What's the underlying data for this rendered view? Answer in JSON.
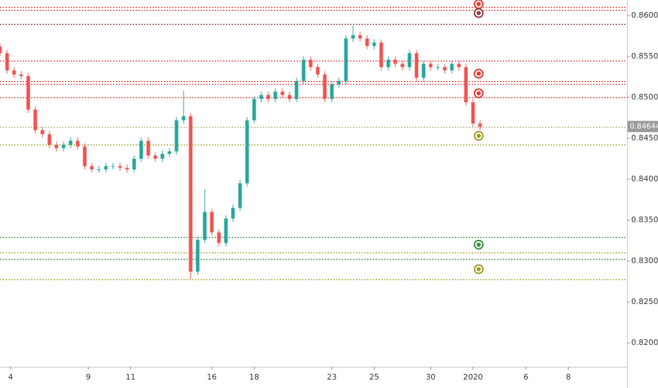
{
  "chart_data": {
    "type": "candlestick",
    "up_color": "#26a69a",
    "down_color": "#ef5350",
    "x": [
      -3,
      -1,
      1,
      3,
      5,
      7,
      9,
      11,
      13,
      15,
      17,
      19,
      21,
      23,
      25,
      27,
      29,
      31,
      33,
      35,
      37,
      39,
      41,
      43,
      45,
      47,
      49,
      51,
      53,
      55,
      57,
      59,
      61,
      63,
      65,
      67,
      69,
      71,
      73,
      75,
      77,
      79,
      81,
      83,
      85,
      87,
      89,
      91,
      93,
      95,
      97,
      99,
      101,
      103,
      105,
      107,
      109,
      111,
      113,
      115,
      117,
      119,
      121,
      123,
      125,
      127,
      129,
      131,
      133
    ],
    "open": [
      0.8562,
      0.8554,
      0.8533,
      0.8528,
      0.8526,
      0.8485,
      0.846,
      0.8455,
      0.8442,
      0.8438,
      0.8442,
      0.8447,
      0.844,
      0.8416,
      0.8412,
      0.8412,
      0.8416,
      0.8416,
      0.8414,
      0.8412,
      0.8425,
      0.8447,
      0.8429,
      0.8425,
      0.8431,
      0.8434,
      0.8472,
      0.8477,
      0.8287,
      0.8326,
      0.836,
      0.8335,
      0.8322,
      0.8352,
      0.8365,
      0.8395,
      0.8472,
      0.8498,
      0.8503,
      0.8498,
      0.8507,
      0.8503,
      0.8498,
      0.852,
      0.8546,
      0.8537,
      0.8528,
      0.8498,
      0.8516,
      0.852,
      0.8572,
      0.8576,
      0.8572,
      0.8563,
      0.8567,
      0.8537,
      0.8546,
      0.8541,
      0.8537,
      0.8554,
      0.8524,
      0.8541,
      0.8537,
      0.8537,
      0.8533,
      0.8541,
      0.8537,
      0.8494,
      0.8468
    ],
    "high": [
      0.8566,
      0.8558,
      0.8537,
      0.8532,
      0.853,
      0.8489,
      0.8464,
      0.8459,
      0.8446,
      0.8446,
      0.8451,
      0.8451,
      0.8444,
      0.842,
      0.8416,
      0.842,
      0.842,
      0.842,
      0.8418,
      0.8429,
      0.8451,
      0.8451,
      0.8433,
      0.8435,
      0.8438,
      0.8476,
      0.8508,
      0.8481,
      0.833,
      0.8388,
      0.8364,
      0.8339,
      0.8356,
      0.8369,
      0.8399,
      0.8476,
      0.8502,
      0.8507,
      0.8507,
      0.8511,
      0.8511,
      0.8507,
      0.8524,
      0.855,
      0.855,
      0.8541,
      0.8532,
      0.852,
      0.8524,
      0.8576,
      0.8588,
      0.858,
      0.8576,
      0.8571,
      0.8571,
      0.855,
      0.855,
      0.8545,
      0.8558,
      0.8558,
      0.8545,
      0.8545,
      0.8541,
      0.8541,
      0.8545,
      0.8545,
      0.8541,
      0.8498,
      0.8472
    ],
    "low": [
      0.855,
      0.8529,
      0.8524,
      0.8522,
      0.8481,
      0.8456,
      0.8451,
      0.8438,
      0.8434,
      0.8434,
      0.8438,
      0.8436,
      0.8412,
      0.8408,
      0.8408,
      0.8408,
      0.8412,
      0.841,
      0.8408,
      0.8408,
      0.8421,
      0.8425,
      0.8421,
      0.8421,
      0.8427,
      0.843,
      0.8468,
      0.8278,
      0.8283,
      0.8322,
      0.8331,
      0.8318,
      0.8318,
      0.8348,
      0.8361,
      0.8391,
      0.8468,
      0.8494,
      0.8494,
      0.8494,
      0.8499,
      0.8494,
      0.8494,
      0.8516,
      0.8533,
      0.8524,
      0.8494,
      0.8494,
      0.8512,
      0.8516,
      0.8568,
      0.8568,
      0.8559,
      0.8559,
      0.8533,
      0.8533,
      0.8537,
      0.8533,
      0.8533,
      0.852,
      0.852,
      0.8533,
      0.8533,
      0.8529,
      0.8529,
      0.8533,
      0.849,
      0.8464,
      0.846
    ],
    "close": [
      0.8554,
      0.8533,
      0.8528,
      0.8526,
      0.8485,
      0.846,
      0.8455,
      0.8442,
      0.8438,
      0.8442,
      0.8447,
      0.844,
      0.8416,
      0.8412,
      0.8412,
      0.8416,
      0.8416,
      0.8414,
      0.8412,
      0.8425,
      0.8447,
      0.8429,
      0.8425,
      0.8431,
      0.8434,
      0.8472,
      0.8477,
      0.8287,
      0.8326,
      0.836,
      0.8335,
      0.8322,
      0.8352,
      0.8365,
      0.8395,
      0.8472,
      0.8498,
      0.8503,
      0.8498,
      0.8507,
      0.8503,
      0.8498,
      0.852,
      0.8546,
      0.8537,
      0.8528,
      0.8498,
      0.8516,
      0.852,
      0.8572,
      0.8576,
      0.8572,
      0.8563,
      0.8567,
      0.8537,
      0.8546,
      0.8541,
      0.8537,
      0.8554,
      0.8524,
      0.8541,
      0.8537,
      0.8537,
      0.8533,
      0.8541,
      0.8537,
      0.8494,
      0.8468,
      0.8464
    ],
    "levels": [
      {
        "price": 0.861,
        "color": "#e53935"
      },
      {
        "price": 0.8607,
        "color": "#e53935"
      },
      {
        "price": 0.859,
        "color": "#8e2c2c"
      },
      {
        "price": 0.8545,
        "color": "#e53935"
      },
      {
        "price": 0.852,
        "color": "#e53935"
      },
      {
        "price": 0.8516,
        "color": "#e53935"
      },
      {
        "price": 0.85,
        "color": "#e53935"
      },
      {
        "price": 0.8464,
        "color": "#b0b07a"
      },
      {
        "price": 0.8442,
        "color": "#9e9d24"
      },
      {
        "price": 0.8329,
        "color": "#388e3c"
      },
      {
        "price": 0.831,
        "color": "#9e9d24"
      },
      {
        "price": 0.8303,
        "color": "#388e3c"
      },
      {
        "price": 0.8278,
        "color": "#9e9d24"
      }
    ],
    "markers": {
      "x": 132.6,
      "prices": [
        0.8614,
        0.8603,
        0.8529,
        0.8505,
        0.8453,
        0.832,
        0.829
      ],
      "colors": [
        "#e53935",
        "#8e3c3c",
        "#e53935",
        "#e53935",
        "#9e9d24",
        "#388e3c",
        "#9e9d24"
      ]
    },
    "last_price": {
      "value": 0.84644,
      "label": "0.84644",
      "color": "#9a9a9a"
    },
    "xlim": [
      -3,
      174.6
    ],
    "ylim": [
      0.81707,
      0.8619
    ],
    "xticks": [
      {
        "value": 0,
        "label": "4"
      },
      {
        "value": 22,
        "label": "9"
      },
      {
        "value": 34,
        "label": "11"
      },
      {
        "value": 57,
        "label": "16"
      },
      {
        "value": 69,
        "label": "18"
      },
      {
        "value": 91,
        "label": "23"
      },
      {
        "value": 103,
        "label": "25"
      },
      {
        "value": 119,
        "label": "30"
      },
      {
        "value": 131,
        "label": "2020"
      },
      {
        "value": 146,
        "label": "6"
      },
      {
        "value": 158,
        "label": "8"
      }
    ],
    "yticks": [
      {
        "value": 0.82,
        "label": "0.82000"
      },
      {
        "value": 0.825,
        "label": "0.82500"
      },
      {
        "value": 0.83,
        "label": "0.83000"
      },
      {
        "value": 0.835,
        "label": "0.83500"
      },
      {
        "value": 0.84,
        "label": "0.84000"
      },
      {
        "value": 0.845,
        "label": "0.84500"
      },
      {
        "value": 0.85,
        "label": "0.85000"
      },
      {
        "value": 0.855,
        "label": "0.85500"
      },
      {
        "value": 0.86,
        "label": "0.86000"
      }
    ]
  }
}
